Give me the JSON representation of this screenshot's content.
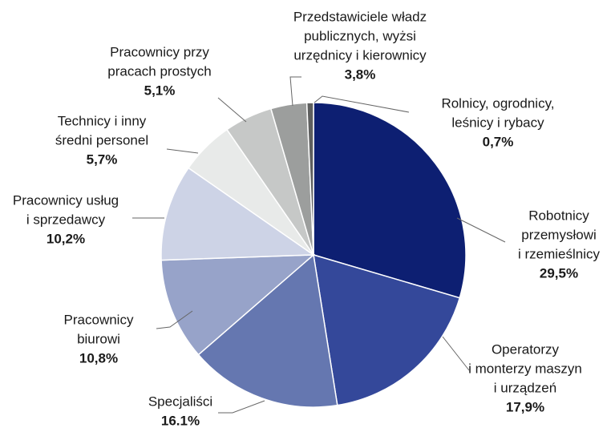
{
  "chart_data": {
    "type": "pie",
    "categories": [
      [
        "Robotnicy",
        "przemysłowi",
        "i rzemieślnicy"
      ],
      [
        "Operatorzy",
        "i monterzy maszyn",
        "i urządzeń"
      ],
      [
        "Specjaliści"
      ],
      [
        "Pracownicy",
        "biurowi"
      ],
      [
        "Pracownicy usług",
        "i sprzedawcy"
      ],
      [
        "Technicy i inny",
        "średni personel"
      ],
      [
        "Pracownicy przy",
        "pracach prostych"
      ],
      [
        "Przedstawiciele władz",
        "publicznych, wyżsi",
        "urzędnicy i kierownicy"
      ],
      [
        "Rolnicy, ogrodnicy,",
        "leśnicy i rybacy"
      ]
    ],
    "values": [
      29.5,
      17.9,
      16.1,
      10.8,
      10.2,
      5.7,
      5.1,
      3.8,
      0.7
    ],
    "value_labels": [
      "29,5%",
      "17,9%",
      "16.1%",
      "10,8%",
      "10,2%",
      "5,7%",
      "5,1%",
      "3,8%",
      "0,7%"
    ],
    "colors": [
      "#0d1f72",
      "#34489a",
      "#6577b0",
      "#97a3c9",
      "#cdd3e6",
      "#e8eae9",
      "#c6c8c7",
      "#9c9e9d",
      "#5e5f5f"
    ]
  }
}
